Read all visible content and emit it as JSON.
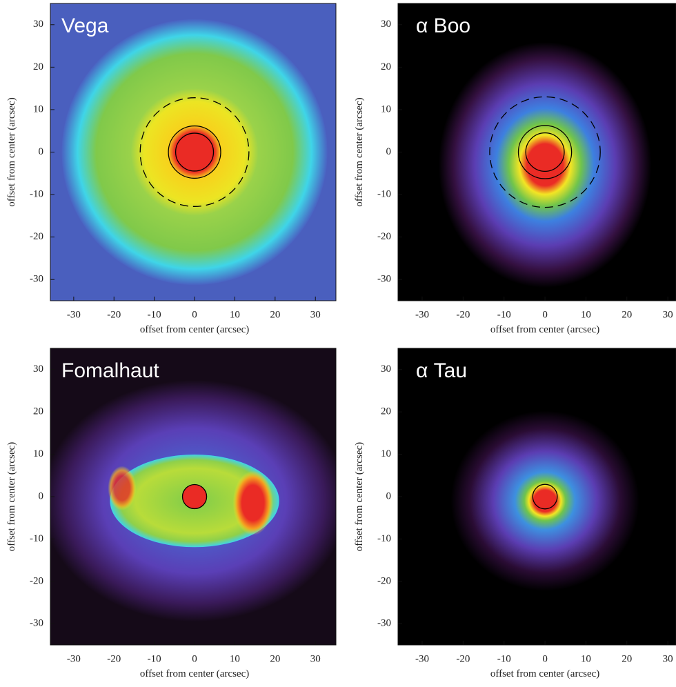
{
  "chart_data": [
    {
      "type": "image",
      "title": "Vega",
      "xlabel": "offset from center (arcsec)",
      "ylabel": "offset from center (arcsec)",
      "xlim": [
        -35.8,
        35.1
      ],
      "ylim": [
        -35,
        35
      ],
      "xticks": [
        -30,
        -20,
        -10,
        0,
        10,
        20,
        30
      ],
      "yticks": [
        -30,
        -20,
        -10,
        0,
        10,
        20,
        30
      ]
    },
    {
      "type": "image",
      "title": "α Boo",
      "xlabel": "offset from center (arcsec)",
      "ylabel": "offset from center (arcsec)",
      "xlim": [
        -35.9,
        32
      ],
      "ylim": [
        -35,
        35
      ],
      "xticks": [
        -30,
        -20,
        -10,
        0,
        10,
        20,
        30
      ],
      "yticks": [
        -30,
        -20,
        -10,
        0,
        10,
        20,
        30
      ]
    },
    {
      "type": "image",
      "title": "Fomalhaut",
      "xlabel": "offset from center (arcsec)",
      "ylabel": "offset from center (arcsec)",
      "xlim": [
        -35.8,
        35.1
      ],
      "ylim": [
        -35,
        35
      ],
      "xticks": [
        -30,
        -20,
        -10,
        0,
        10,
        20,
        30
      ],
      "yticks": [
        -30,
        -20,
        -10,
        0,
        10,
        20,
        30
      ]
    },
    {
      "type": "image",
      "title": "α Tau",
      "xlabel": "offset from center (arcsec)",
      "ylabel": "offset from center (arcsec)",
      "xlim": [
        -35.9,
        32
      ],
      "ylim": [
        -35,
        35
      ],
      "xticks": [
        -30,
        -20,
        -10,
        0,
        10,
        20,
        30
      ],
      "yticks": [
        -30,
        -20,
        -10,
        0,
        10,
        20,
        30
      ]
    }
  ]
}
